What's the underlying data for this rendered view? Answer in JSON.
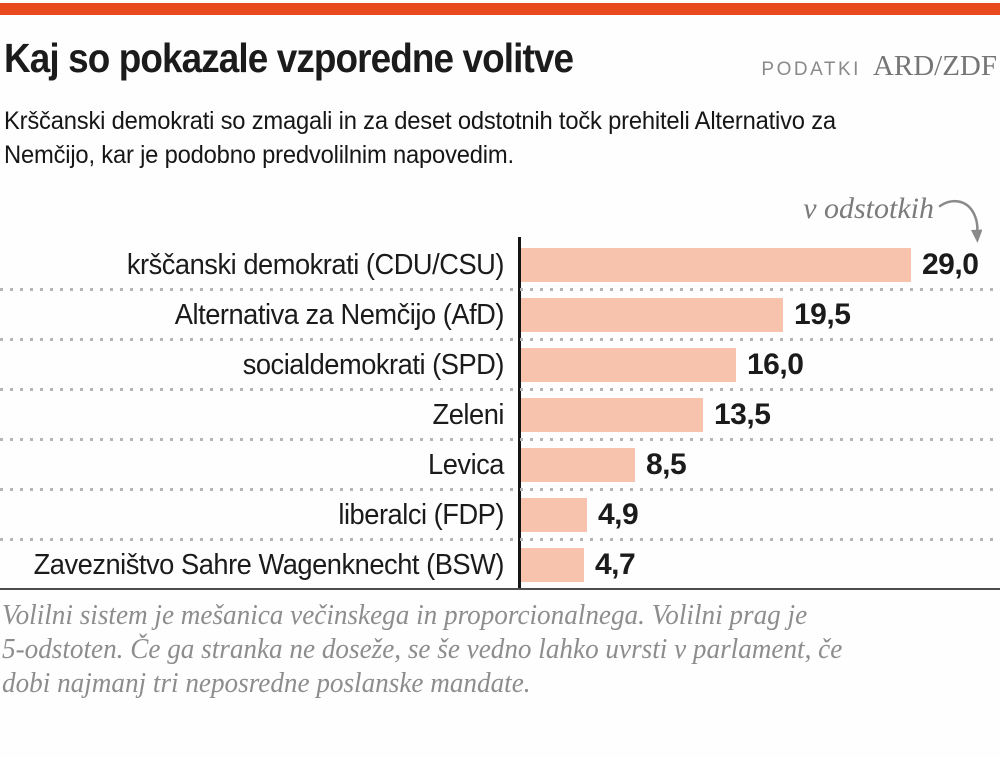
{
  "page": {
    "accent_color": "#e8491d",
    "bar_color": "#f7c3ac",
    "background_color": "#fefefe"
  },
  "header": {
    "title": "Kaj so pokazale vzporedne volitve",
    "source_label": "PODATKI",
    "source_value": "ARD/ZDF"
  },
  "subtitle": {
    "line1": "Krščanski demokrati so zmagali in za deset odstotnih točk prehiteli Alternativo za",
    "line2": "Nemčijo, kar je podobno predvolilnim napovedim."
  },
  "chart_data": {
    "type": "bar",
    "orientation": "horizontal",
    "title": "Kaj so pokazale vzporedne volitve",
    "unit_label": "v odstotkih",
    "categories": [
      "krščanski demokrati (CDU/CSU)",
      "Alternativa za Nemčijo (AfD)",
      "socialdemokrati (SPD)",
      "Zeleni",
      "Levica",
      "liberalci (FDP)",
      "Zavezništvo Sahre Wagenknecht (BSW)"
    ],
    "values": [
      29.0,
      19.5,
      16.0,
      13.5,
      8.5,
      4.9,
      4.7
    ],
    "value_labels": [
      "29,0",
      "19,5",
      "16,0",
      "13,5",
      "8,5",
      "4,9",
      "4,7"
    ],
    "xlim": [
      0,
      29
    ],
    "bar_color": "#f7c3ac",
    "grid": "dotted horizontal separators between rows",
    "legend": "none",
    "decimal_separator": ","
  },
  "footer": {
    "lines": [
      "Volilni sistem je mešanica večinskega in proporcionalnega. Volilni prag je",
      "5-odstoten. Če ga stranka ne doseže, se še vedno lahko uvrsti v parlament, če",
      "dobi najmanj tri neposredne poslanske mandate."
    ]
  }
}
